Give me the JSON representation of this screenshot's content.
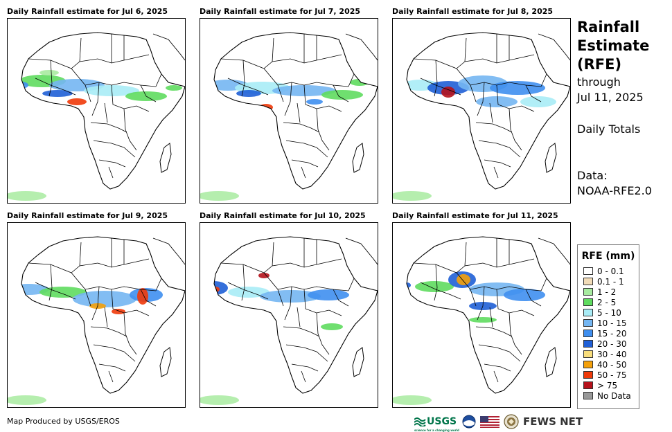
{
  "panels": [
    {
      "title": "Daily Rainfall estimate for Jul 6, 2025"
    },
    {
      "title": "Daily Rainfall estimate for Jul 7, 2025"
    },
    {
      "title": "Daily Rainfall estimate for Jul 8, 2025"
    },
    {
      "title": "Daily Rainfall estimate for Jul 9, 2025"
    },
    {
      "title": "Daily Rainfall estimate for Jul 10, 2025"
    },
    {
      "title": "Daily Rainfall estimate for Jul 11, 2025"
    }
  ],
  "side": {
    "title_line1": "Rainfall",
    "title_line2": "Estimate",
    "title_line3": "(RFE)",
    "through_label": "through",
    "through_date": "Jul 11, 2025",
    "totals_label": "Daily Totals",
    "data_label": "Data:",
    "data_source": "NOAA-RFE2.0"
  },
  "legend": {
    "title": "RFE (mm)",
    "items": [
      {
        "label": "0 - 0.1",
        "color": "#ffffff"
      },
      {
        "label": "0.1 - 1",
        "color": "#f2dcb8"
      },
      {
        "label": "1 - 2",
        "color": "#a8eba0"
      },
      {
        "label": "2 - 5",
        "color": "#5fdc5f"
      },
      {
        "label": "5 - 10",
        "color": "#a9ecf6"
      },
      {
        "label": "10 - 15",
        "color": "#74b6f2"
      },
      {
        "label": "15 - 20",
        "color": "#3f8ff0"
      },
      {
        "label": "20 - 30",
        "color": "#1f5fd6"
      },
      {
        "label": "30 - 40",
        "color": "#f8dd7c"
      },
      {
        "label": "40 - 50",
        "color": "#f4a00a"
      },
      {
        "label": "50 - 75",
        "color": "#ef3a0a"
      },
      {
        "label": "> 75",
        "color": "#b5121b"
      },
      {
        "label": "No Data",
        "color": "#999999"
      }
    ]
  },
  "footer": {
    "producer": "Map Produced by USGS/EROS",
    "usgs_label": "USGS",
    "usgs_tagline": "science for a changing world",
    "fews_label": "FEWS NET"
  }
}
